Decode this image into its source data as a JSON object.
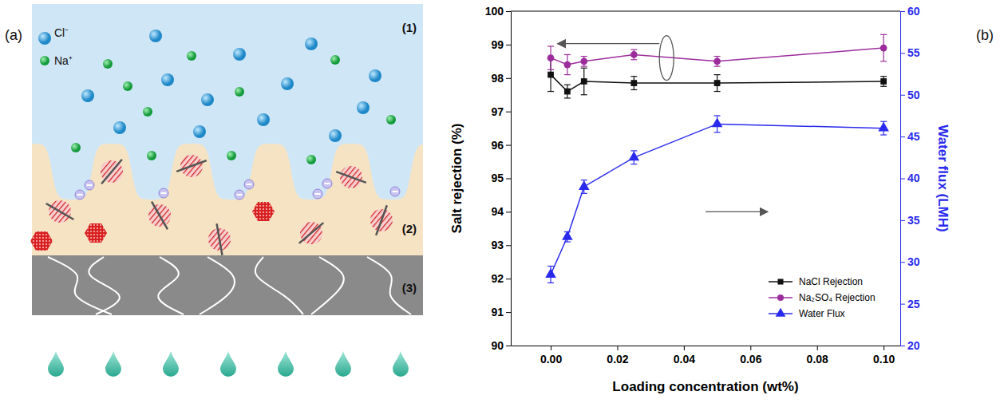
{
  "diagram": {
    "panel_label": "(a)",
    "ion_labels": [
      "Cl⁻",
      "Na⁺"
    ],
    "layers": [
      "(1)",
      "(2)",
      "(3)"
    ]
  },
  "chart_data": {
    "type": "line",
    "panel_label": "(b)",
    "x_label": "Loading concentration (wt%)",
    "y_label": "Salt rejection (%)",
    "y2_label": "Water flux (LMH)",
    "x": [
      0,
      0.005,
      0.01,
      0.025,
      0.05,
      0.1
    ],
    "xlim": [
      -0.012,
      0.105
    ],
    "xticks": [
      {
        "value": 0,
        "label": "0.00"
      },
      {
        "value": 0.02,
        "label": "0.02"
      },
      {
        "value": 0.04,
        "label": "0.04"
      },
      {
        "value": 0.06,
        "label": "0.06"
      },
      {
        "value": 0.08,
        "label": "0.08"
      },
      {
        "value": 0.1,
        "label": "0.10"
      }
    ],
    "ylim": [
      90,
      100
    ],
    "yticks": [
      90,
      91,
      92,
      93,
      94,
      95,
      96,
      97,
      98,
      99,
      100
    ],
    "y2lim": [
      20,
      60
    ],
    "y2ticks": [
      20,
      25,
      30,
      35,
      40,
      45,
      50,
      55,
      60
    ],
    "legend": "lower right",
    "series": [
      {
        "name": "NaCl Rejection",
        "color": "#111111",
        "marker": "square",
        "values": [
          98.1,
          97.6,
          97.9,
          97.85,
          97.85,
          97.9
        ],
        "errors": [
          0.5,
          0.2,
          0.4,
          0.2,
          0.25,
          0.15
        ]
      },
      {
        "name": "Na₂SO₄ Rejection",
        "color": "#9c2c9c",
        "marker": "circle",
        "values": [
          98.6,
          98.4,
          98.5,
          98.7,
          98.5,
          98.9
        ],
        "errors": [
          0.35,
          0.3,
          0.15,
          0.15,
          0.15,
          0.4
        ]
      },
      {
        "name": "Water Flux",
        "color": "#2a2aee",
        "marker": "triangle",
        "axis": "y2",
        "values": [
          28.5,
          33,
          39,
          42.5,
          46.5,
          46
        ],
        "errors": [
          1,
          0.6,
          0.8,
          0.8,
          1,
          0.8
        ]
      }
    ]
  }
}
